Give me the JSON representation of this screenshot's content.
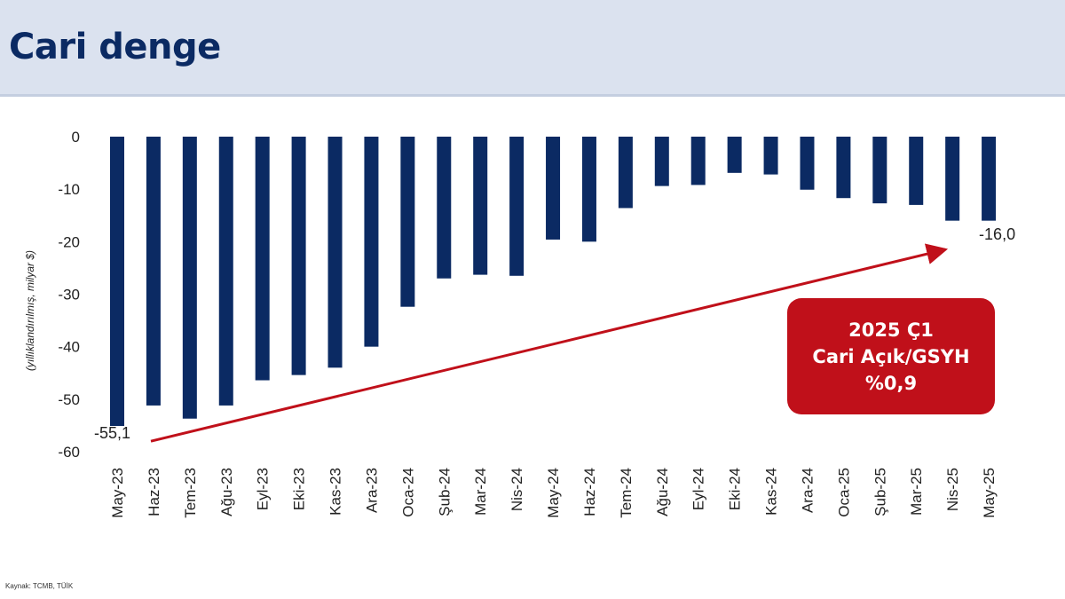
{
  "header": {
    "title": "Cari denge"
  },
  "callout": {
    "line1": "2025 Ç1",
    "line2": "Cari Açık/GSYH",
    "line3": "%0,9"
  },
  "source": "Kaynak: TCMB, TÜİK",
  "colors": {
    "bar": "#0b2a63",
    "arrow": "#c0101a",
    "header_bg": "#dbe2ef"
  },
  "chart_data": {
    "type": "bar",
    "title": "",
    "xlabel": "",
    "ylabel": "(yıllıklandırılmış, milyar $)",
    "ylim": [
      -60,
      0
    ],
    "yticks": [
      0,
      -10,
      -20,
      -30,
      -40,
      -50,
      -60
    ],
    "grid": false,
    "categories": [
      "May-23",
      "Haz-23",
      "Tem-23",
      "Ağu-23",
      "Eyl-23",
      "Eki-23",
      "Kas-23",
      "Ara-23",
      "Oca-24",
      "Şub-24",
      "Mar-24",
      "Nis-24",
      "May-24",
      "Haz-24",
      "Tem-24",
      "Ağu-24",
      "Eyl-24",
      "Eki-24",
      "Kas-24",
      "Ara-24",
      "Oca-25",
      "Şub-25",
      "Mar-25",
      "Nis-25",
      "May-25"
    ],
    "values": [
      -55.1,
      -51.2,
      -53.7,
      -51.2,
      -46.4,
      -45.4,
      -44.0,
      -40.0,
      -32.4,
      -27.0,
      -26.3,
      -26.5,
      -19.6,
      -20.0,
      -13.6,
      -9.4,
      -9.2,
      -6.9,
      -7.2,
      -10.1,
      -11.7,
      -12.7,
      -13.0,
      -16.0,
      -16.0
    ],
    "annotations": [
      {
        "label": "-55,1",
        "category": "May-23",
        "value": -55.1
      },
      {
        "label": "-16,0",
        "category": "May-25",
        "value": -16.0
      }
    ],
    "trend_arrow": {
      "from": {
        "category": "May-23",
        "value": -58.0
      },
      "to": {
        "category": "Nis-25",
        "value": -21.5
      }
    }
  }
}
